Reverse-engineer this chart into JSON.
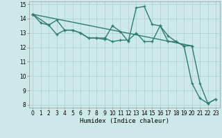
{
  "title": "",
  "xlabel": "Humidex (Indice chaleur)",
  "ylabel": "",
  "bg_color": "#cce8e8",
  "line_color": "#2d7d6e",
  "grid_color": "#aacfcf",
  "xlim": [
    -0.5,
    23.5
  ],
  "ylim": [
    7.8,
    15.2
  ],
  "xticks": [
    0,
    1,
    2,
    3,
    4,
    5,
    6,
    7,
    8,
    9,
    10,
    11,
    12,
    13,
    14,
    15,
    16,
    17,
    18,
    19,
    20,
    21,
    22,
    23
  ],
  "yticks": [
    8,
    9,
    10,
    11,
    12,
    13,
    14,
    15
  ],
  "line1_x": [
    0,
    1,
    2,
    3,
    4,
    5,
    6,
    7,
    8,
    9,
    10,
    11,
    12,
    13,
    14,
    15,
    16,
    17,
    18,
    19,
    20,
    21,
    22,
    23
  ],
  "line1_y": [
    14.3,
    13.7,
    13.55,
    12.9,
    13.2,
    13.2,
    13.0,
    12.65,
    12.65,
    12.55,
    13.5,
    13.1,
    12.4,
    14.75,
    14.85,
    13.6,
    13.5,
    12.8,
    12.4,
    12.1,
    9.5,
    8.45,
    8.1,
    8.4
  ],
  "line2_x": [
    0,
    2,
    3,
    4,
    5,
    6,
    7,
    8,
    9,
    10,
    11,
    12,
    13,
    14,
    15,
    16,
    17,
    18,
    19,
    20
  ],
  "line2_y": [
    14.3,
    13.55,
    13.9,
    13.2,
    13.2,
    13.0,
    12.65,
    12.65,
    12.65,
    12.4,
    12.5,
    12.5,
    13.0,
    12.4,
    12.4,
    13.5,
    12.4,
    12.4,
    12.1,
    12.1
  ],
  "line3_x": [
    0,
    20,
    21,
    22,
    23
  ],
  "line3_y": [
    14.3,
    12.1,
    9.5,
    8.1,
    8.4
  ],
  "marker_size": 3.5,
  "linewidth": 1.0
}
